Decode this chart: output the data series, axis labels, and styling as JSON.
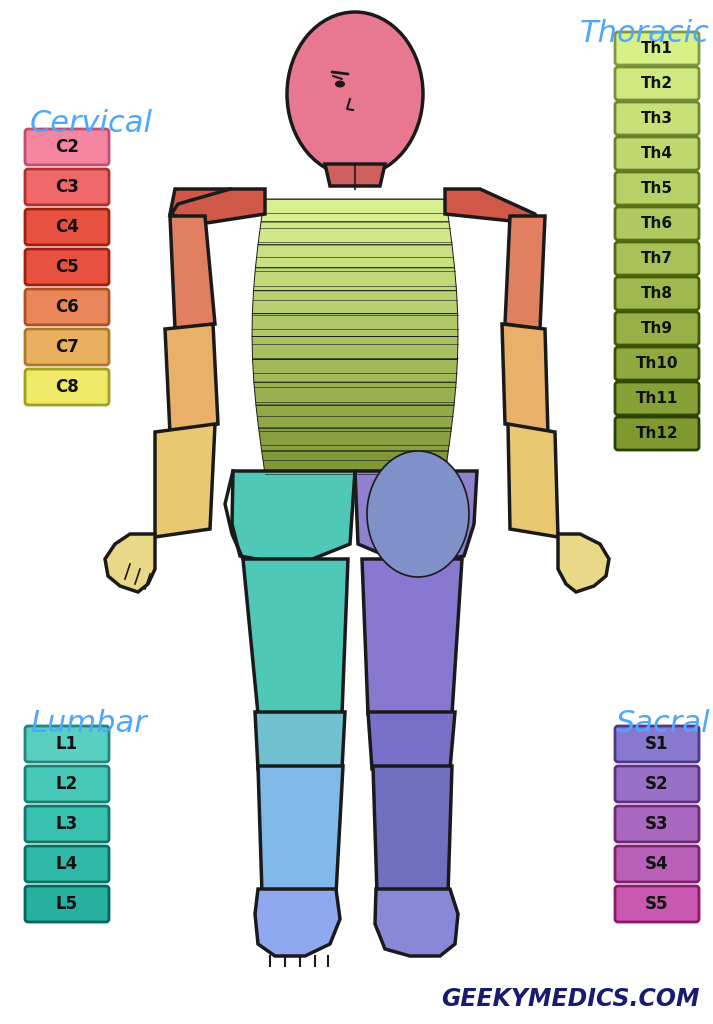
{
  "bg_color": "#ffffff",
  "cervical_title": "Cervical",
  "cervical_title_color": "#4da6ff",
  "cervical_labels": [
    "C2",
    "C3",
    "C4",
    "C5",
    "C6",
    "C7",
    "C8"
  ],
  "cervical_colors": [
    "#f585a0",
    "#f06868",
    "#e85040",
    "#e85040",
    "#e8885a",
    "#e8b060",
    "#f0e868"
  ],
  "cervical_border_colors": [
    "#c05070",
    "#b03030",
    "#a02010",
    "#a02010",
    "#b05020",
    "#b07820",
    "#a0a020"
  ],
  "thoracic_title": "Thoracic",
  "thoracic_title_color": "#4da6ff",
  "thoracic_labels": [
    "Th1",
    "Th2",
    "Th3",
    "Th4",
    "Th5",
    "Th6",
    "Th7",
    "Th8",
    "Th9",
    "Th10",
    "Th11",
    "Th12"
  ],
  "thoracic_colors": [
    "#d8f088",
    "#d0e880",
    "#c8e078",
    "#c0d870",
    "#b8d068",
    "#b0c860",
    "#a8c058",
    "#a0b850",
    "#98b048",
    "#90a840",
    "#88a038",
    "#809830"
  ],
  "thoracic_border_colors": [
    "#809840",
    "#789038",
    "#708830",
    "#688028",
    "#607820",
    "#587018",
    "#506810",
    "#486008",
    "#405800",
    "#385000",
    "#304800",
    "#284000"
  ],
  "lumbar_title": "Lumbar",
  "lumbar_title_color": "#4da6ff",
  "lumbar_labels": [
    "L1",
    "L2",
    "L3",
    "L4",
    "L5"
  ],
  "lumbar_colors": [
    "#58cfc0",
    "#48c8b8",
    "#38c0b0",
    "#30b8a8",
    "#28b0a0"
  ],
  "lumbar_border_colors": [
    "#208878",
    "#188070",
    "#107868",
    "#087060",
    "#006858"
  ],
  "sacral_title": "Sacral",
  "sacral_title_color": "#4da6ff",
  "sacral_labels": [
    "S1",
    "S2",
    "S3",
    "S4",
    "S5"
  ],
  "sacral_colors": [
    "#8878d0",
    "#9870c8",
    "#a868c0",
    "#b860b8",
    "#c858b0"
  ],
  "sacral_border_colors": [
    "#503888",
    "#603080",
    "#702878",
    "#802070",
    "#901868"
  ],
  "watermark": "GEEKYMEDICS.COM",
  "watermark_color": "#1a1a6e",
  "head_color": "#e87890",
  "neck_color": "#d06060",
  "shoulder_color": "#d05848",
  "c4_color": "#d05848",
  "c5_color": "#e08060",
  "c6_color": "#e8b068",
  "c7_color": "#e8c870",
  "c8_color": "#e8d888",
  "torso_stripe_colors": [
    "#d8f090",
    "#d0e888",
    "#c8e080",
    "#c0d878",
    "#b8d070",
    "#b0c868",
    "#a8c060",
    "#a0b858",
    "#98b050",
    "#90a848",
    "#88a040",
    "#809838"
  ],
  "hip_left_color": "#50c8b8",
  "hip_right_color": "#9080d0",
  "thigh_left_color": "#50c8b8",
  "thigh_right_color": "#8878d0",
  "knee_left_color": "#70c0d0",
  "knee_right_color": "#7870c8",
  "lowerleg_left_color": "#80b8e8",
  "lowerleg_right_color": "#7070c0",
  "foot_left_color": "#90a8f0",
  "foot_right_color": "#8888d8",
  "sacral_conc_colors": [
    "#e060a8",
    "#c868c0",
    "#a878d0",
    "#9080d0",
    "#8090c8"
  ]
}
